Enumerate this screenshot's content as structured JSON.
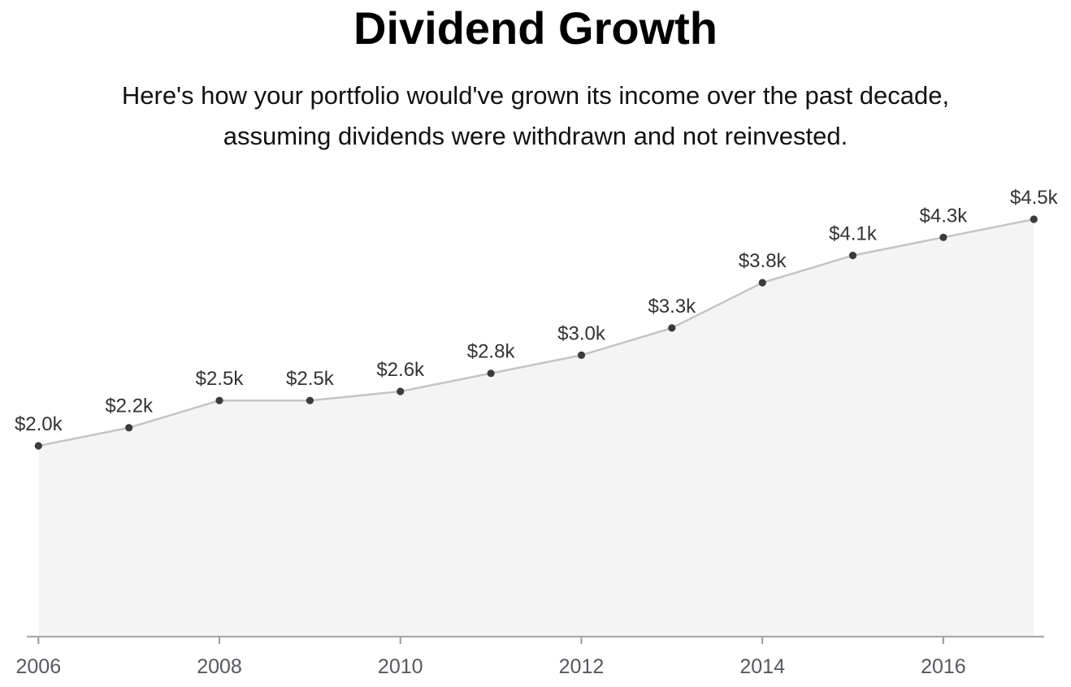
{
  "chart_data": {
    "type": "area",
    "title": "Dividend Growth",
    "subtitle_lines": [
      "Here's how your portfolio would've grown its income over the past decade,",
      "assuming dividends were withdrawn and not reinvested."
    ],
    "x": [
      2006,
      2007,
      2008,
      2009,
      2010,
      2011,
      2012,
      2013,
      2014,
      2015,
      2016,
      2017
    ],
    "values": [
      2.0,
      2.2,
      2.5,
      2.5,
      2.6,
      2.8,
      3.0,
      3.3,
      3.8,
      4.1,
      4.3,
      4.5
    ],
    "unit": "$k",
    "point_labels": [
      "$2.0k",
      "$2.2k",
      "$2.5k",
      "$2.5k",
      "$2.6k",
      "$2.8k",
      "$3.0k",
      "$3.3k",
      "$3.8k",
      "$4.1k",
      "$4.3k",
      "$4.5k"
    ],
    "x_tick_years": [
      2006,
      2008,
      2010,
      2012,
      2014,
      2016
    ],
    "x_tick_labels": [
      "2006",
      "2008",
      "2010",
      "2012",
      "2014",
      "2016"
    ],
    "xlabel": "",
    "ylabel": "",
    "ylim": [
      0,
      4.8
    ],
    "grid": false,
    "legend": "none",
    "colors": {
      "background": "#ffffff",
      "area_fill": "#f4f4f4",
      "line": "#c4c4c4",
      "point": "#3b3b3b",
      "point_label": "#333333",
      "axis_line": "#aaaaaa",
      "tick": "#999999",
      "tick_label": "#55595e",
      "title": "#000000",
      "subtitle": "#111111"
    }
  }
}
